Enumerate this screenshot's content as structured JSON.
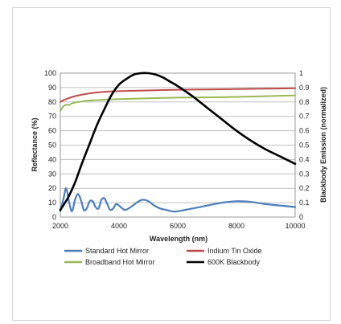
{
  "chart_data": {
    "type": "line",
    "xlabel": "Wavelength (nm)",
    "ylabel_left": "Reflectance (%)",
    "ylabel_right": "Blackbody Emission (normalized)",
    "xlim": [
      2000,
      10000
    ],
    "ylim_left": [
      0,
      100
    ],
    "ylim_right": [
      0,
      1
    ],
    "x_ticks": [
      "2000",
      "4000",
      "6000",
      "8000",
      "10000"
    ],
    "y_left_ticks": [
      "0",
      "10",
      "20",
      "30",
      "40",
      "50",
      "60",
      "70",
      "80",
      "90",
      "100"
    ],
    "y_right_ticks": [
      "0",
      "0.1",
      "0.2",
      "0.3",
      "0.4",
      "0.5",
      "0.6",
      "0.7",
      "0.8",
      "0.9",
      "1"
    ],
    "grid": "horizontal",
    "legend_position": "bottom",
    "series": [
      {
        "name": "Standard Hot Mirror",
        "color": "#4a7ebb",
        "axis": "left",
        "x": [
          2000,
          2100,
          2200,
          2300,
          2400,
          2500,
          2600,
          2700,
          2800,
          2900,
          3000,
          3100,
          3200,
          3300,
          3400,
          3500,
          3600,
          3700,
          3800,
          3900,
          4000,
          4200,
          4400,
          4600,
          4800,
          5000,
          5200,
          5400,
          5600,
          5800,
          6000,
          6500,
          7000,
          7500,
          8000,
          8500,
          9000,
          9500,
          10000
        ],
        "values": [
          4,
          12,
          20,
          10,
          4,
          12,
          16,
          12,
          5,
          6,
          11,
          11,
          7,
          6,
          12,
          13,
          9,
          5,
          6,
          9,
          8,
          5,
          7,
          10,
          12,
          11,
          8,
          6,
          5,
          4,
          4,
          6,
          8,
          10,
          11,
          10.5,
          9,
          8,
          7
        ]
      },
      {
        "name": "Indium Tin Oxide",
        "color": "#be4b48",
        "axis": "left",
        "x": [
          2000,
          2200,
          2500,
          3000,
          3500,
          4000,
          5000,
          6000,
          7000,
          8000,
          9000,
          10000
        ],
        "values": [
          80,
          82,
          84,
          86,
          87,
          87.5,
          88,
          88.5,
          88.7,
          89,
          89.2,
          89.5
        ]
      },
      {
        "name": "Broadband Hot Mirror",
        "color": "#98b954",
        "axis": "left",
        "x": [
          2000,
          2100,
          2200,
          2300,
          2400,
          2600,
          2800,
          3000,
          3500,
          4000,
          5000,
          6000,
          7000,
          8000,
          9000,
          10000
        ],
        "values": [
          74,
          77,
          78,
          78,
          79,
          80,
          80.5,
          81,
          81.5,
          82,
          82.5,
          83,
          83.2,
          83.5,
          84,
          84.5
        ]
      },
      {
        "name": "600K Blackbody",
        "color": "#000000",
        "axis": "right",
        "x": [
          2000,
          2250,
          2500,
          2750,
          3000,
          3250,
          3500,
          3750,
          4000,
          4250,
          4500,
          4750,
          5000,
          5250,
          5500,
          5750,
          6000,
          6500,
          7000,
          7500,
          8000,
          8500,
          9000,
          9500,
          10000
        ],
        "values": [
          0.05,
          0.13,
          0.24,
          0.38,
          0.51,
          0.64,
          0.75,
          0.85,
          0.92,
          0.96,
          0.99,
          1.0,
          1.0,
          0.99,
          0.97,
          0.94,
          0.91,
          0.84,
          0.76,
          0.68,
          0.6,
          0.53,
          0.47,
          0.42,
          0.37
        ]
      }
    ]
  }
}
